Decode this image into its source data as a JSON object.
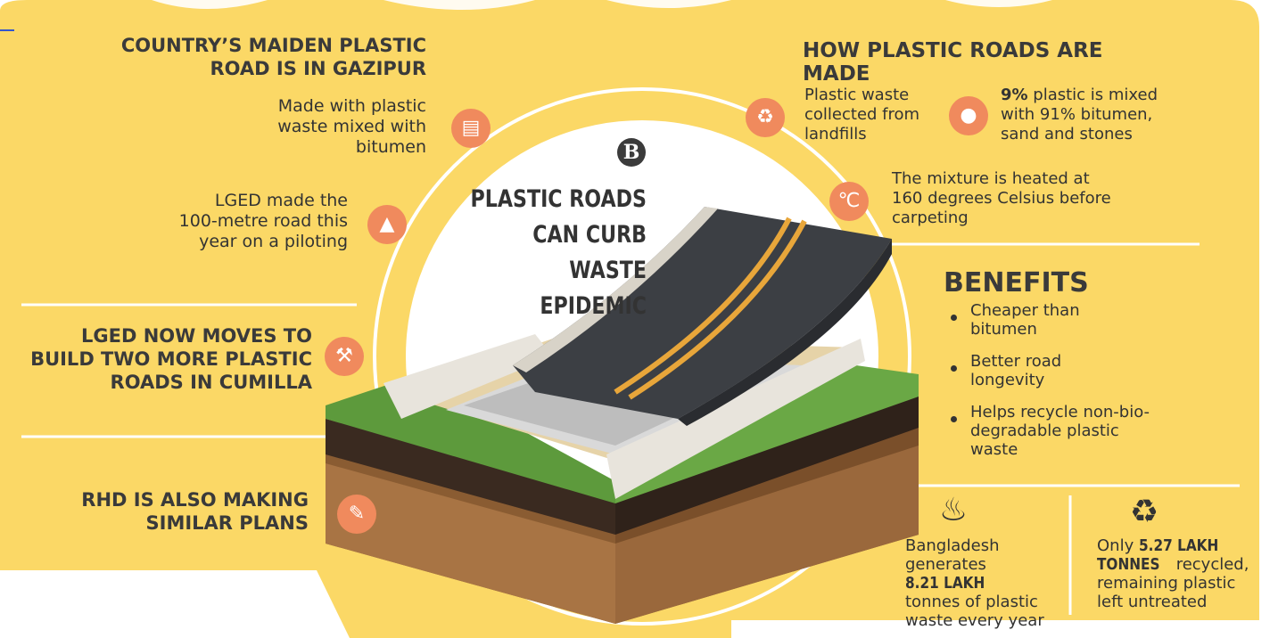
{
  "colors": {
    "background": "#fbd866",
    "accent": "#f08a5d",
    "text": "#333333",
    "road": "#3c3f44",
    "road_line": "#e8a63a",
    "grass": "#5d9a3c",
    "soil": "#9c6b3e"
  },
  "left": {
    "maiden_heading": [
      "COUNTRY’S MAIDEN PLASTIC",
      "ROAD IS IN GAZIPUR"
    ],
    "made_with": [
      "Made with plastic",
      "waste mixed with",
      "bitumen"
    ],
    "made_with_icon": "barrel-icon",
    "lged_made": [
      "LGED made the",
      "100-metre road this",
      "year on a piloting"
    ],
    "lged_made_icon": "road-icon",
    "lged_moves": [
      "LGED NOW MOVES TO",
      "BUILD TWO MORE PLASTIC",
      "ROADS IN CUMILLA"
    ],
    "lged_moves_icon": "worker-icon",
    "rhd": [
      "RHD IS ALSO MAKING",
      "SIMILAR PLANS"
    ],
    "rhd_icon": "document-pen-icon"
  },
  "center": {
    "brand": "B",
    "title": [
      "PLASTIC ROADS",
      "CAN CURB",
      "WASTE EPIDEMIC"
    ]
  },
  "right": {
    "how_heading": "HOW PLASTIC ROADS ARE MADE",
    "step_collect": [
      "Plastic waste",
      "collected from",
      "landfills"
    ],
    "step_collect_icon": "trash-bin-icon",
    "step_mix_bold": "9%",
    "step_mix": [
      " plastic is mixed",
      "with 91% bitumen,",
      "sand and stones"
    ],
    "step_mix_icon": "stones-icon",
    "step_heat": [
      "The mixture is heated at",
      "160 degrees Celsius before",
      "carpeting"
    ],
    "step_heat_icon": "thermometer-icon",
    "benefits_title": "BENEFITS",
    "benefits": [
      [
        "Cheaper than",
        "bitumen"
      ],
      [
        "Better road",
        "longevity"
      ],
      [
        "Helps recycle non-bio-",
        "degradable plastic",
        "waste"
      ]
    ]
  },
  "stats": {
    "generates_pre": [
      "Bangladesh",
      "generates "
    ],
    "generates_bold": "8.21 LAKH",
    "generates_post": [
      "tonnes of plastic",
      "waste every year"
    ],
    "generates_icon": "garbage-pile-icon",
    "recycled_pre": "Only ",
    "recycled_bold_1": "5.27 LAKH",
    "recycled_bold_2": "TONNES",
    "recycled_post": [
      " recycled,",
      "remaining plastic",
      "left untreated"
    ],
    "recycled_icon": "recycle-icon"
  }
}
